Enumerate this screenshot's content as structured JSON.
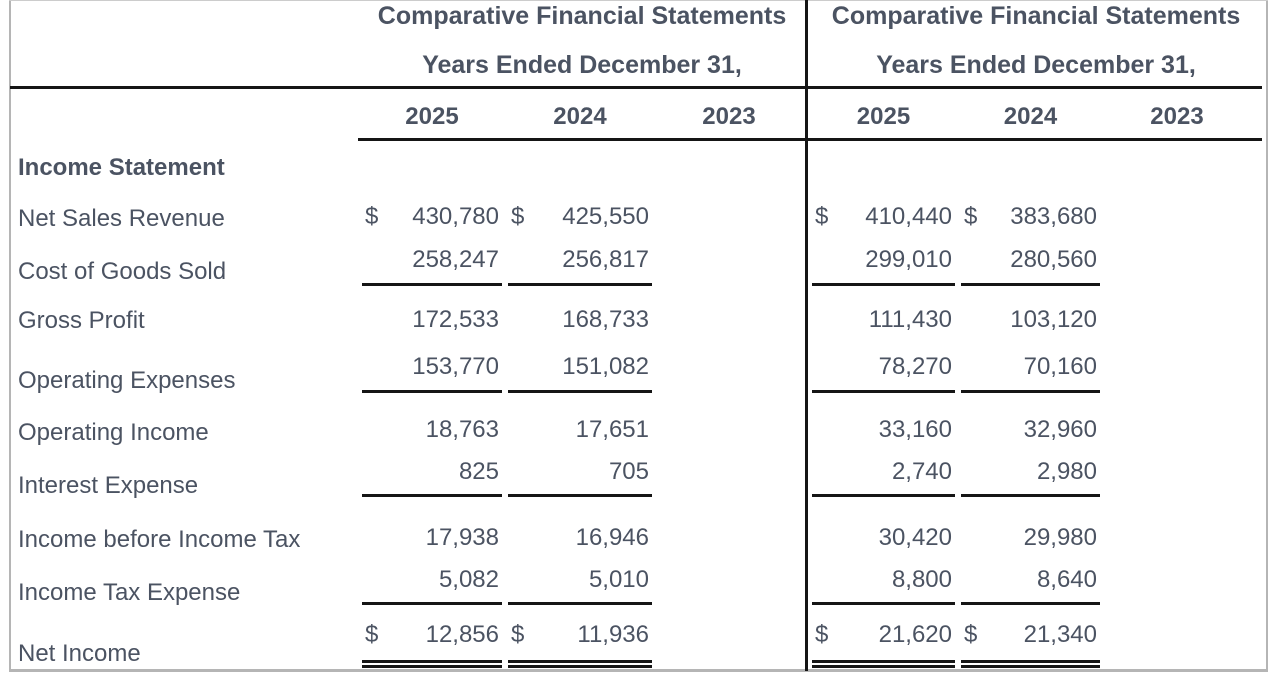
{
  "document": {
    "left_panel": {
      "title": "Comparative Financial Statements",
      "subtitle": "Years Ended December 31,",
      "years": [
        "2025",
        "2024",
        "2023"
      ]
    },
    "right_panel": {
      "title": "Comparative Financial Statements",
      "subtitle": "Years Ended December 31,",
      "years": [
        "2025",
        "2024",
        "2023"
      ]
    },
    "section_heading": "Income Statement",
    "currency_symbol": "$",
    "rows": [
      {
        "label": "Net Sales Revenue",
        "dollar_sign": true,
        "rule": "none",
        "left_values": [
          "430,780",
          "425,550"
        ],
        "right_values": [
          "410,440",
          "383,680"
        ]
      },
      {
        "label": "Cost of Goods Sold",
        "dollar_sign": false,
        "rule": "single",
        "left_values": [
          "258,247",
          "256,817"
        ],
        "right_values": [
          "299,010",
          "280,560"
        ]
      },
      {
        "label": "Gross Profit",
        "dollar_sign": false,
        "rule": "none",
        "left_values": [
          "172,533",
          "168,733"
        ],
        "right_values": [
          "111,430",
          "103,120"
        ]
      },
      {
        "label": "Operating Expenses",
        "dollar_sign": false,
        "rule": "single",
        "left_values": [
          "153,770",
          "151,082"
        ],
        "right_values": [
          "78,270",
          "70,160"
        ]
      },
      {
        "label": "Operating Income",
        "dollar_sign": false,
        "rule": "none",
        "left_values": [
          "18,763",
          "17,651"
        ],
        "right_values": [
          "33,160",
          "32,960"
        ]
      },
      {
        "label": "Interest Expense",
        "dollar_sign": false,
        "rule": "single",
        "left_values": [
          "825",
          "705"
        ],
        "right_values": [
          "2,740",
          "2,980"
        ]
      },
      {
        "label": "Income before Income Tax",
        "dollar_sign": false,
        "rule": "none",
        "left_values": [
          "17,938",
          "16,946"
        ],
        "right_values": [
          "30,420",
          "29,980"
        ]
      },
      {
        "label": "Income Tax Expense",
        "dollar_sign": false,
        "rule": "single",
        "left_values": [
          "5,082",
          "5,010"
        ],
        "right_values": [
          "8,800",
          "8,640"
        ]
      },
      {
        "label": "Net Income",
        "dollar_sign": true,
        "rule": "double",
        "left_values": [
          "12,856",
          "11,936"
        ],
        "right_values": [
          "21,620",
          "21,340"
        ]
      }
    ]
  },
  "colors": {
    "text": "#4b5362",
    "rule_black": "#151515",
    "frame_gray": "#b5b5b5",
    "background": "#ffffff"
  }
}
